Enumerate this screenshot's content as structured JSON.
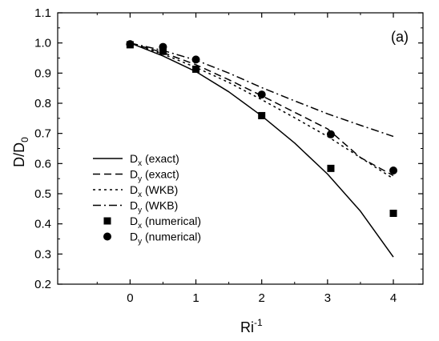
{
  "chart_data": {
    "type": "line",
    "panel_label": "(a)",
    "xlabel": {
      "base": "Ri",
      "sup": "-1"
    },
    "ylabel": {
      "base": "D/D",
      "sub": "0"
    },
    "xlim": [
      -1.1,
      4.45
    ],
    "ylim": [
      0.2,
      1.1
    ],
    "xticks": [
      0,
      1,
      2,
      3,
      4
    ],
    "yticks": [
      0.2,
      0.3,
      0.4,
      0.5,
      0.6,
      0.7,
      0.8,
      0.9,
      1.0,
      1.1
    ],
    "xtick_labels": [
      "0",
      "1",
      "2",
      "3",
      "4"
    ],
    "ytick_labels": [
      "0.2",
      "0.3",
      "0.4",
      "0.5",
      "0.6",
      "0.7",
      "0.8",
      "0.9",
      "1.0",
      "1.1"
    ],
    "grid": false,
    "legend_position": "bottom-left",
    "series": [
      {
        "id": "dx-exact",
        "sym": "D",
        "sub": "x",
        "label": " (exact)",
        "kind": "line",
        "dash": "solid",
        "x": [
          0,
          0.5,
          1,
          1.5,
          2,
          2.5,
          3,
          3.5,
          4
        ],
        "y": [
          1.0,
          0.957,
          0.905,
          0.838,
          0.758,
          0.668,
          0.565,
          0.442,
          0.29
        ]
      },
      {
        "id": "dy-exact",
        "sym": "D",
        "sub": "y",
        "label": " (exact)",
        "kind": "line",
        "dash": "dash",
        "x": [
          0,
          0.5,
          1,
          1.5,
          2,
          2.5,
          3,
          3.5,
          4
        ],
        "y": [
          1.0,
          0.968,
          0.928,
          0.878,
          0.825,
          0.77,
          0.715,
          0.62,
          0.56
        ]
      },
      {
        "id": "dx-wkb",
        "sym": "D",
        "sub": "x",
        "label": " (WKB)",
        "kind": "line",
        "dash": "dot",
        "x": [
          0,
          0.5,
          1,
          1.5,
          2,
          2.5,
          3,
          3.5,
          4
        ],
        "y": [
          1.0,
          0.963,
          0.919,
          0.869,
          0.812,
          0.752,
          0.69,
          0.62,
          0.55
        ]
      },
      {
        "id": "dy-wkb",
        "sym": "D",
        "sub": "y",
        "label": " (WKB)",
        "kind": "line",
        "dash": "dashdot",
        "x": [
          0,
          0.5,
          1,
          1.5,
          2,
          2.5,
          3,
          3.5,
          4
        ],
        "y": [
          1.0,
          0.975,
          0.943,
          0.9,
          0.852,
          0.808,
          0.765,
          0.727,
          0.69
        ]
      },
      {
        "id": "dx-num",
        "sym": "D",
        "sub": "x",
        "label": " (numerical)",
        "kind": "marker",
        "marker": "square",
        "x": [
          0,
          0.5,
          1,
          2,
          3.05,
          4
        ],
        "y": [
          0.994,
          0.972,
          0.913,
          0.759,
          0.584,
          0.435
        ]
      },
      {
        "id": "dy-num",
        "sym": "D",
        "sub": "y",
        "label": " (numerical)",
        "kind": "marker",
        "marker": "circle",
        "x": [
          0,
          0.5,
          1,
          2,
          3.05,
          4
        ],
        "y": [
          0.996,
          0.987,
          0.945,
          0.829,
          0.697,
          0.577
        ]
      }
    ]
  }
}
